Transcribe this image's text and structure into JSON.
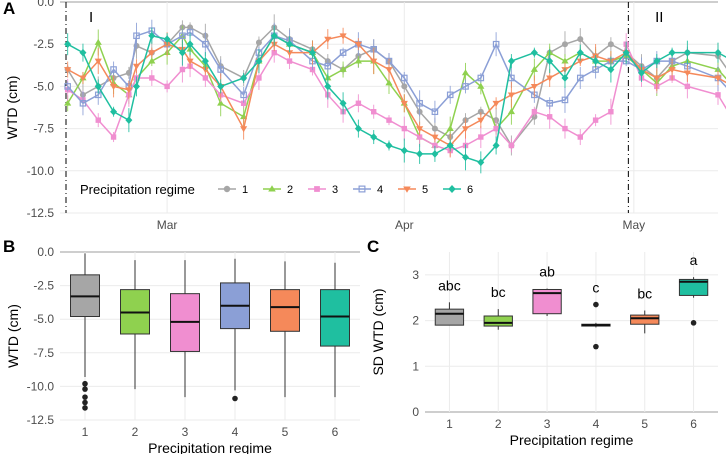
{
  "colors": {
    "r1": "#a6a6a6",
    "r2": "#8fd14f",
    "r3": "#f08ed0",
    "r4": "#8b9fd6",
    "r5": "#f5895a",
    "r6": "#1fbfa0",
    "grid": "#ebebeb",
    "zero": "#bdbdbd"
  },
  "panels": {
    "a": "A",
    "b": "B",
    "c": "C"
  },
  "chart_data": [
    {
      "id": "A",
      "type": "line",
      "ylabel": "WTD (cm)",
      "xlabel": "",
      "ylim": [
        -12.5,
        0.0
      ],
      "yticks": [
        "0.0",
        "-2.5",
        "-5.0",
        "-7.5",
        "-10.0",
        "-12.5"
      ],
      "ytick_values": [
        0,
        -2.5,
        -5,
        -7.5,
        -10,
        -12.5
      ],
      "xlim": [
        0,
        86
      ],
      "xticks": [
        {
          "label": "Mar",
          "value": 14
        },
        {
          "label": "Apr",
          "value": 45
        },
        {
          "label": "May",
          "value": 75
        }
      ],
      "period_lines": [
        0,
        73.5
      ],
      "period_labels": [
        {
          "label": "I",
          "value": 3
        },
        {
          "label": "II",
          "value": 77
        }
      ],
      "legend": {
        "title": "Precipitation regime",
        "placement": "bottom-left",
        "entries": [
          "1",
          "2",
          "3",
          "4",
          "5",
          "6"
        ]
      },
      "series": [
        {
          "name": "1",
          "marker": "circle",
          "x": [
            1,
            3,
            5,
            7,
            9,
            10,
            12,
            14,
            16,
            17,
            19,
            21,
            24,
            26,
            28,
            30,
            33,
            35,
            37,
            39,
            41,
            43,
            45,
            47,
            49,
            51,
            53,
            55,
            57,
            59,
            62,
            64,
            66,
            68,
            70,
            72,
            74,
            76,
            78,
            80,
            82,
            86,
            88
          ],
          "values": [
            -4.0,
            -5.5,
            -5.0,
            -4.5,
            -4.2,
            -2.6,
            -3.0,
            -2.5,
            -1.5,
            -1.5,
            -2.0,
            -3.8,
            -4.5,
            -2.4,
            -1.5,
            -2.2,
            -2.8,
            -3.5,
            -4.0,
            -3.2,
            -2.8,
            -3.5,
            -5.0,
            -6.5,
            -7.5,
            -8.0,
            -7.0,
            -6.5,
            -7.0,
            -8.5,
            -6.8,
            -3.0,
            -2.5,
            -2.2,
            -3.2,
            -2.5,
            -3.0,
            -3.8,
            -4.5,
            -3.5,
            -3.0,
            -3.2,
            -4.5
          ]
        },
        {
          "name": "2",
          "marker": "triangle",
          "x": [
            1,
            3,
            5,
            7,
            9,
            10,
            12,
            14,
            16,
            17,
            19,
            21,
            24,
            26,
            28,
            30,
            33,
            35,
            37,
            39,
            41,
            43,
            45,
            47,
            49,
            51,
            53,
            55,
            57,
            59,
            62,
            64,
            66,
            68,
            70,
            72,
            74,
            76,
            78,
            80,
            82,
            86,
            88
          ],
          "values": [
            -6.0,
            -4.5,
            -2.4,
            -4.8,
            -5.5,
            -4.5,
            -3.5,
            -3.0,
            -2.0,
            -2.8,
            -3.8,
            -6.0,
            -6.8,
            -3.5,
            -2.0,
            -2.5,
            -3.0,
            -4.5,
            -4.0,
            -3.5,
            -3.5,
            -4.8,
            -6.0,
            -8.0,
            -8.5,
            -7.5,
            -4.2,
            -5.0,
            -7.5,
            -6.5,
            -4.0,
            -3.0,
            -3.5,
            -3.0,
            -3.5,
            -3.5,
            -3.2,
            -4.0,
            -4.8,
            -3.8,
            -3.5,
            -4.0,
            -5.0
          ]
        },
        {
          "name": "3",
          "marker": "square",
          "x": [
            1,
            3,
            5,
            7,
            9,
            10,
            12,
            14,
            16,
            17,
            19,
            21,
            24,
            26,
            28,
            30,
            33,
            35,
            37,
            39,
            41,
            43,
            45,
            47,
            49,
            51,
            53,
            55,
            57,
            59,
            62,
            64,
            66,
            68,
            70,
            72,
            74,
            76,
            78,
            80,
            82,
            86,
            88
          ],
          "values": [
            -5.2,
            -5.8,
            -7.0,
            -8.0,
            -5.5,
            -4.5,
            -4.5,
            -5.0,
            -4.0,
            -3.8,
            -4.5,
            -5.5,
            -6.0,
            -4.5,
            -3.0,
            -3.5,
            -4.0,
            -5.5,
            -6.5,
            -6.0,
            -6.5,
            -7.0,
            -7.5,
            -8.0,
            -8.5,
            -8.8,
            -8.5,
            -8.0,
            -7.5,
            -8.5,
            -6.5,
            -6.8,
            -7.5,
            -8.0,
            -7.0,
            -6.5,
            -2.5,
            -4.5,
            -5.0,
            -4.5,
            -5.0,
            -5.5,
            -7.0
          ]
        },
        {
          "name": "4",
          "marker": "square-open",
          "x": [
            1,
            3,
            5,
            7,
            9,
            10,
            12,
            14,
            16,
            17,
            19,
            21,
            24,
            26,
            28,
            30,
            33,
            35,
            37,
            39,
            41,
            43,
            45,
            47,
            49,
            51,
            53,
            55,
            57,
            59,
            62,
            64,
            66,
            68,
            70,
            72,
            74,
            76,
            78,
            80,
            82,
            86,
            88
          ],
          "values": [
            -5.0,
            -6.0,
            -5.5,
            -4.0,
            -5.0,
            -2.0,
            -1.7,
            -2.5,
            -2.0,
            -1.8,
            -2.5,
            -4.0,
            -5.5,
            -3.0,
            -2.0,
            -2.3,
            -3.5,
            -3.8,
            -3.0,
            -2.5,
            -2.8,
            -3.5,
            -4.5,
            -6.0,
            -6.5,
            -5.5,
            -5.0,
            -4.5,
            -2.5,
            -4.5,
            -5.5,
            -6.0,
            -5.8,
            -4.5,
            -4.0,
            -3.5,
            -3.5,
            -4.0,
            -3.5,
            -3.5,
            -3.8,
            -4.5,
            -5.5
          ]
        },
        {
          "name": "5",
          "marker": "triangle-down",
          "x": [
            1,
            3,
            5,
            7,
            9,
            10,
            12,
            14,
            16,
            17,
            19,
            21,
            24,
            26,
            28,
            30,
            33,
            35,
            37,
            39,
            41,
            43,
            45,
            47,
            49,
            51,
            53,
            55,
            57,
            59,
            62,
            64,
            66,
            68,
            70,
            72,
            74,
            76,
            78,
            80,
            82,
            86,
            88
          ],
          "values": [
            -4.0,
            -4.5,
            -3.5,
            -5.0,
            -5.2,
            -3.8,
            -3.0,
            -2.5,
            -2.8,
            -3.5,
            -4.0,
            -5.0,
            -7.5,
            -3.5,
            -2.5,
            -3.0,
            -3.0,
            -2.2,
            -2.0,
            -2.5,
            -3.5,
            -4.0,
            -6.0,
            -7.5,
            -8.0,
            -8.5,
            -7.5,
            -7.0,
            -6.0,
            -5.5,
            -5.0,
            -4.5,
            -4.0,
            -3.5,
            -3.2,
            -3.5,
            -3.0,
            -4.0,
            -4.5,
            -4.0,
            -4.2,
            -4.5,
            -5.0
          ]
        },
        {
          "name": "6",
          "marker": "diamond",
          "x": [
            1,
            3,
            5,
            7,
            9,
            10,
            12,
            14,
            16,
            17,
            19,
            21,
            24,
            26,
            28,
            30,
            33,
            35,
            37,
            39,
            41,
            43,
            45,
            47,
            49,
            51,
            53,
            55,
            57,
            59,
            62,
            64,
            66,
            68,
            70,
            72,
            74,
            76,
            78,
            80,
            82,
            86,
            88
          ],
          "values": [
            -2.5,
            -3.0,
            -5.0,
            -6.5,
            -7.0,
            -5.0,
            -2.0,
            -2.2,
            -3.0,
            -2.5,
            -3.5,
            -5.0,
            -4.5,
            -3.5,
            -2.0,
            -2.5,
            -3.0,
            -5.0,
            -6.0,
            -7.5,
            -8.0,
            -8.5,
            -8.8,
            -9.0,
            -9.0,
            -8.5,
            -9.2,
            -9.5,
            -8.5,
            -3.5,
            -3.0,
            -3.5,
            -4.5,
            -3.0,
            -3.5,
            -4.0,
            -3.0,
            -4.2,
            -3.5,
            -3.0,
            -3.0,
            -3.0,
            -3.5
          ]
        }
      ]
    },
    {
      "id": "B",
      "type": "box",
      "ylabel": "WTD (cm)",
      "xlabel": "Precipitation regime",
      "ylim": [
        -12.5,
        0.0
      ],
      "yticks": [
        "0.0",
        "-2.5",
        "-5.0",
        "-7.5",
        "-10.0",
        "-12.5"
      ],
      "ytick_values": [
        0,
        -2.5,
        -5,
        -7.5,
        -10,
        -12.5
      ],
      "categories": [
        "1",
        "2",
        "3",
        "4",
        "5",
        "6"
      ],
      "boxes": [
        {
          "min": -9.3,
          "q1": -4.8,
          "median": -3.3,
          "q3": -1.7,
          "max": -0.1,
          "outliers": [
            -9.8,
            -10.2,
            -10.8,
            -11.2,
            -11.6
          ]
        },
        {
          "min": -10.2,
          "q1": -6.1,
          "median": -4.5,
          "q3": -2.8,
          "max": -0.6
        },
        {
          "min": -10.8,
          "q1": -7.4,
          "median": -5.2,
          "q3": -3.1,
          "max": -0.6
        },
        {
          "min": -10.3,
          "q1": -5.7,
          "median": -4.0,
          "q3": -2.3,
          "max": -0.5,
          "outliers": [
            -10.9
          ]
        },
        {
          "min": -10.8,
          "q1": -5.9,
          "median": -4.1,
          "q3": -2.8,
          "max": -0.7
        },
        {
          "min": -10.8,
          "q1": -7.0,
          "median": -4.8,
          "q3": -2.8,
          "max": -0.8
        }
      ]
    },
    {
      "id": "C",
      "type": "box",
      "ylabel": "SD WTD (cm)",
      "xlabel": "Precipitation regime",
      "ylim": [
        0,
        3.5
      ],
      "yticks": [
        "0",
        "1",
        "2",
        "3"
      ],
      "ytick_values": [
        0,
        1,
        2,
        3
      ],
      "categories": [
        "1",
        "2",
        "3",
        "4",
        "5",
        "6"
      ],
      "annotations": [
        "abc",
        "bc",
        "ab",
        "c",
        "bc",
        "a"
      ],
      "boxes": [
        {
          "min": 1.9,
          "q1": 1.9,
          "median": 2.15,
          "q3": 2.25,
          "max": 2.4
        },
        {
          "min": 1.8,
          "q1": 1.88,
          "median": 1.95,
          "q3": 2.1,
          "max": 2.25
        },
        {
          "min": 2.1,
          "q1": 2.15,
          "median": 2.6,
          "q3": 2.68,
          "max": 2.7
        },
        {
          "min": 1.85,
          "q1": 1.88,
          "median": 1.9,
          "q3": 1.92,
          "max": 1.95,
          "outliers": [
            2.35,
            1.43
          ]
        },
        {
          "min": 1.72,
          "q1": 1.92,
          "median": 2.05,
          "q3": 2.12,
          "max": 2.22
        },
        {
          "min": 2.5,
          "q1": 2.55,
          "median": 2.85,
          "q3": 2.9,
          "max": 2.95,
          "outliers": [
            1.95
          ]
        }
      ]
    }
  ]
}
